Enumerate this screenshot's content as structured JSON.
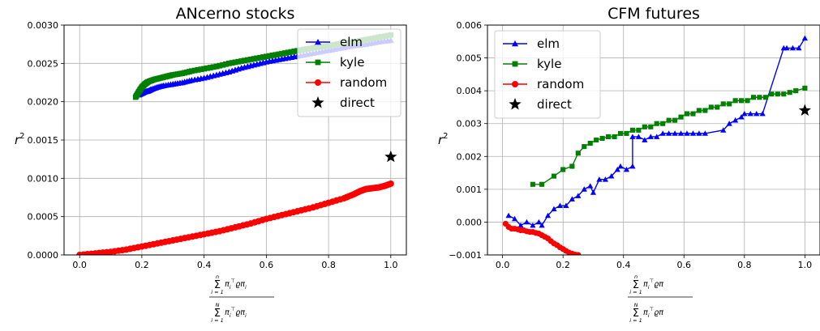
{
  "chart_data": [
    {
      "type": "line",
      "title": "ANcerno stocks",
      "ylabel": "r",
      "ylabel_sup": "2",
      "xlim": [
        -0.05,
        1.05
      ],
      "ylim": [
        0,
        0.003
      ],
      "xticks": [
        0.0,
        0.2,
        0.4,
        0.6,
        0.8,
        1.0
      ],
      "xtick_labels": [
        "0.0",
        "0.2",
        "0.4",
        "0.6",
        "0.8",
        "1.0"
      ],
      "yticks": [
        0,
        0.0005,
        0.001,
        0.0015,
        0.002,
        0.0025,
        0.003
      ],
      "ytick_labels": [
        "0.0000",
        "0.0005",
        "0.0010",
        "0.0015",
        "0.0020",
        "0.0025",
        "0.0030"
      ],
      "grid": true,
      "legend": "top-right",
      "xlabel_fraction": {
        "numerator": {
          "sum_top": "n",
          "sum_bottom": "i = 1",
          "term": "π",
          "term_sub": "i",
          "term_sup": "⊤",
          "mid": "ϱπ",
          "mid_sub": "i"
        },
        "denominator": {
          "sum_top": "N",
          "sum_bottom": "i = 1",
          "term": "π",
          "term_sub": "i",
          "term_sup": "⊤",
          "mid": "ϱπ",
          "mid_sub": "i"
        }
      },
      "series": [
        {
          "name": "elm",
          "color": "#0000ff",
          "marker": "triangle",
          "dense": true,
          "x": [
            0.19,
            0.2,
            0.21,
            0.22,
            0.23,
            0.25,
            0.27,
            0.3,
            0.33,
            0.36,
            0.4,
            0.44,
            0.48,
            0.52,
            0.56,
            0.6,
            0.64,
            0.68,
            0.72,
            0.76,
            0.8,
            0.84,
            0.88,
            0.92,
            0.96,
            1.0
          ],
          "y": [
            0.00209,
            0.00211,
            0.00213,
            0.00214,
            0.00216,
            0.00219,
            0.00221,
            0.00223,
            0.00225,
            0.00228,
            0.00231,
            0.00235,
            0.00239,
            0.00244,
            0.00248,
            0.00252,
            0.00255,
            0.00258,
            0.00261,
            0.00264,
            0.00267,
            0.0027,
            0.00273,
            0.00275,
            0.00278,
            0.0028
          ]
        },
        {
          "name": "kyle",
          "color": "#008000",
          "marker": "square",
          "dense": true,
          "x": [
            0.18,
            0.19,
            0.2,
            0.21,
            0.22,
            0.24,
            0.26,
            0.28,
            0.3,
            0.33,
            0.36,
            0.4,
            0.44,
            0.48,
            0.52,
            0.56,
            0.6,
            0.64,
            0.68,
            0.72,
            0.76,
            0.8,
            0.84,
            0.88,
            0.92,
            0.96,
            1.0
          ],
          "y": [
            0.00206,
            0.00213,
            0.00219,
            0.00223,
            0.00226,
            0.00229,
            0.00231,
            0.00233,
            0.00235,
            0.00237,
            0.0024,
            0.00243,
            0.00246,
            0.0025,
            0.00253,
            0.00256,
            0.00259,
            0.00262,
            0.00265,
            0.00268,
            0.00271,
            0.00273,
            0.00276,
            0.00278,
            0.00281,
            0.00284,
            0.00287
          ]
        },
        {
          "name": "random",
          "color": "#ff0000",
          "marker": "circle",
          "dense": true,
          "x": [
            0.0,
            0.05,
            0.1,
            0.15,
            0.2,
            0.25,
            0.3,
            0.35,
            0.4,
            0.45,
            0.5,
            0.55,
            0.6,
            0.65,
            0.7,
            0.75,
            0.8,
            0.85,
            0.88,
            0.9,
            0.92,
            0.94,
            0.96,
            0.98,
            1.0
          ],
          "y": [
            0.0,
            2e-05,
            4e-05,
            7e-05,
            0.00011,
            0.00015,
            0.00019,
            0.00023,
            0.00027,
            0.00031,
            0.00036,
            0.00041,
            0.00047,
            0.00052,
            0.00057,
            0.00062,
            0.00068,
            0.00074,
            0.00079,
            0.00083,
            0.00086,
            0.00087,
            0.00088,
            0.0009,
            0.00093
          ]
        },
        {
          "name": "direct",
          "color": "#000000",
          "marker": "star",
          "dense": false,
          "x": [
            1.0
          ],
          "y": [
            0.00128
          ]
        }
      ]
    },
    {
      "type": "line",
      "title": "CFM futures",
      "ylabel": "r",
      "ylabel_sup": "2",
      "xlim": [
        -0.05,
        1.05
      ],
      "ylim": [
        -0.001,
        0.006
      ],
      "xticks": [
        0.0,
        0.2,
        0.4,
        0.6,
        0.8,
        1.0
      ],
      "xtick_labels": [
        "0.0",
        "0.2",
        "0.4",
        "0.6",
        "0.8",
        "1.0"
      ],
      "yticks": [
        -0.001,
        0,
        0.001,
        0.002,
        0.003,
        0.004,
        0.005,
        0.006
      ],
      "ytick_labels": [
        "−0.001",
        "0.000",
        "0.001",
        "0.002",
        "0.003",
        "0.004",
        "0.005",
        "0.006"
      ],
      "grid": true,
      "legend": "top-left",
      "xlabel_fraction": {
        "numerator": {
          "sum_top": "n",
          "sum_bottom": "i = 1",
          "term": "π",
          "term_sub": "i",
          "term_sup": "⊤",
          "mid": "ϱπ",
          "mid_sub": ""
        },
        "denominator": {
          "sum_top": "N",
          "sum_bottom": "i = 1",
          "term": "π",
          "term_sub": "i",
          "term_sup": "⊤",
          "mid": "ϱπ",
          "mid_sub": ""
        }
      },
      "series": [
        {
          "name": "elm",
          "color": "#0000ff",
          "marker": "triangle",
          "dense": false,
          "x": [
            0.02,
            0.04,
            0.06,
            0.08,
            0.1,
            0.12,
            0.13,
            0.15,
            0.17,
            0.19,
            0.21,
            0.23,
            0.25,
            0.27,
            0.29,
            0.3,
            0.32,
            0.34,
            0.36,
            0.38,
            0.39,
            0.41,
            0.43,
            0.43,
            0.45,
            0.47,
            0.49,
            0.51,
            0.53,
            0.55,
            0.57,
            0.59,
            0.61,
            0.63,
            0.65,
            0.67,
            0.73,
            0.75,
            0.77,
            0.79,
            0.8,
            0.82,
            0.84,
            0.86,
            0.93,
            0.94,
            0.96,
            0.98,
            1.0
          ],
          "y": [
            0.0002,
            0.0001,
            -0.0001,
            0.0,
            -0.0001,
            0.0,
            -0.0001,
            0.0002,
            0.0004,
            0.0005,
            0.0005,
            0.0007,
            0.0008,
            0.001,
            0.0011,
            0.0009,
            0.0013,
            0.0013,
            0.0014,
            0.0016,
            0.0017,
            0.0016,
            0.0017,
            0.0026,
            0.0026,
            0.0025,
            0.0026,
            0.0026,
            0.0027,
            0.0027,
            0.0027,
            0.0027,
            0.0027,
            0.0027,
            0.0027,
            0.0027,
            0.0028,
            0.003,
            0.0031,
            0.0032,
            0.0033,
            0.0033,
            0.0033,
            0.0033,
            0.0053,
            0.0053,
            0.0053,
            0.0053,
            0.0056
          ]
        },
        {
          "name": "kyle",
          "color": "#008000",
          "marker": "square",
          "dense": false,
          "x": [
            0.1,
            0.13,
            0.17,
            0.2,
            0.23,
            0.25,
            0.27,
            0.29,
            0.31,
            0.33,
            0.35,
            0.37,
            0.39,
            0.41,
            0.43,
            0.45,
            0.47,
            0.49,
            0.51,
            0.53,
            0.55,
            0.57,
            0.59,
            0.61,
            0.63,
            0.65,
            0.67,
            0.69,
            0.71,
            0.73,
            0.75,
            0.77,
            0.79,
            0.81,
            0.83,
            0.85,
            0.87,
            0.89,
            0.91,
            0.93,
            0.95,
            0.97,
            1.0
          ],
          "y": [
            0.00115,
            0.00115,
            0.0014,
            0.0016,
            0.0017,
            0.0021,
            0.0023,
            0.0024,
            0.0025,
            0.00255,
            0.0026,
            0.0026,
            0.0027,
            0.0027,
            0.0028,
            0.0028,
            0.0029,
            0.0029,
            0.003,
            0.003,
            0.0031,
            0.0031,
            0.0032,
            0.0033,
            0.0033,
            0.0034,
            0.0034,
            0.0035,
            0.0035,
            0.0036,
            0.0036,
            0.0037,
            0.0037,
            0.0037,
            0.0038,
            0.0038,
            0.0038,
            0.0039,
            0.0039,
            0.0039,
            0.00395,
            0.004,
            0.00408
          ]
        },
        {
          "name": "random",
          "color": "#ff0000",
          "marker": "circle",
          "dense": false,
          "x": [
            0.01,
            0.02,
            0.03,
            0.04,
            0.05,
            0.06,
            0.07,
            0.08,
            0.09,
            0.1,
            0.11,
            0.12,
            0.13,
            0.14,
            0.15,
            0.16,
            0.17,
            0.18,
            0.19,
            0.2,
            0.21,
            0.22,
            0.23,
            0.24,
            0.25
          ],
          "y": [
            -5e-05,
            -0.00015,
            -0.0002,
            -0.0002,
            -0.00022,
            -0.00025,
            -0.00025,
            -0.00028,
            -0.0003,
            -0.0003,
            -0.00033,
            -0.00035,
            -0.0004,
            -0.00045,
            -0.0005,
            -0.00058,
            -0.00065,
            -0.0007,
            -0.00077,
            -0.00082,
            -0.00088,
            -0.00093,
            -0.00096,
            -0.00099,
            -0.001
          ]
        },
        {
          "name": "direct",
          "color": "#000000",
          "marker": "star",
          "dense": false,
          "x": [
            1.0
          ],
          "y": [
            0.0034
          ]
        }
      ]
    }
  ]
}
